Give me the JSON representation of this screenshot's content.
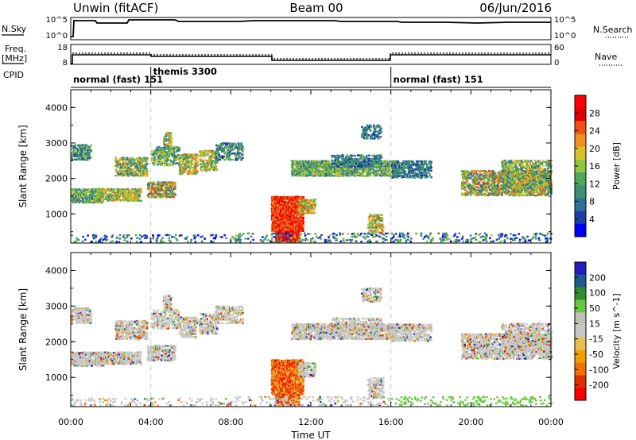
{
  "header": {
    "station": "Unwin (fitACF)",
    "beam": "Beam 00",
    "date": "06/Jun/2016"
  },
  "strip_noise": {
    "left_label": "N.Sky",
    "right_label": "N.Search",
    "left_ticks": [
      "10^5",
      "10^0"
    ],
    "right_ticks": [
      "10^5",
      "10^0"
    ]
  },
  "strip_freq": {
    "left_label_1": "Freq.",
    "left_label_2": "[MHz]",
    "right_label": "Nave",
    "left_ticks": [
      "18",
      "8"
    ],
    "right_ticks": [
      "60",
      "0"
    ]
  },
  "strip_cpid": {
    "label": "CPID",
    "segments": [
      {
        "name": "normal (fast) 151",
        "start_hour": 0,
        "end_hour": 4
      },
      {
        "name": "themis 3300",
        "start_hour": 4,
        "end_hour": 16
      },
      {
        "name": "normal (fast) 151",
        "start_hour": 16,
        "end_hour": 24
      }
    ]
  },
  "colors": {
    "power_scale": [
      "#0000ff",
      "#1a3fa8",
      "#2f6f9a",
      "#3f8f6f",
      "#4fa858",
      "#8fc83f",
      "#d9c02a",
      "#f09020",
      "#f05010",
      "#e00000",
      "#ff0000"
    ],
    "velocity_scale": [
      "#ff0000",
      "#e03000",
      "#f07000",
      "#f0a000",
      "#e8c050",
      "#c8c8c8",
      "#c0c0b8",
      "#6ac840",
      "#2f8f2f",
      "#1e5a8f",
      "#2020c0"
    ]
  },
  "chart_data": [
    {
      "type": "heatmap",
      "title": "Power",
      "xlabel": "Time UT",
      "ylabel": "Slant Range [km]",
      "xlim_hours": [
        0,
        24
      ],
      "ylim": [
        180,
        4500
      ],
      "x_tick_labels": [
        "00:00",
        "04:00",
        "08:00",
        "12:00",
        "16:00",
        "20:00",
        "00:00"
      ],
      "y_tick_labels": [
        "1000",
        "2000",
        "3000",
        "4000"
      ],
      "colorbar_label": "Power [dB]",
      "colorbar_ticks": [
        "4",
        "8",
        "12",
        "16",
        "20",
        "24",
        "28"
      ],
      "colorbar_range": [
        0,
        30
      ]
    },
    {
      "type": "heatmap",
      "title": "Velocity",
      "xlabel": "Time UT",
      "ylabel": "Slant Range [km]",
      "xlim_hours": [
        0,
        24
      ],
      "ylim": [
        180,
        4500
      ],
      "x_tick_labels": [
        "00:00",
        "04:00",
        "08:00",
        "12:00",
        "16:00",
        "20:00",
        "00:00"
      ],
      "y_tick_labels": [
        "1000",
        "2000",
        "3000",
        "4000"
      ],
      "colorbar_label": "Velocity [m s^-1]",
      "colorbar_ticks": [
        "200",
        "100",
        "50",
        "15",
        "-15",
        "-50",
        "-100",
        "-200"
      ]
    }
  ]
}
